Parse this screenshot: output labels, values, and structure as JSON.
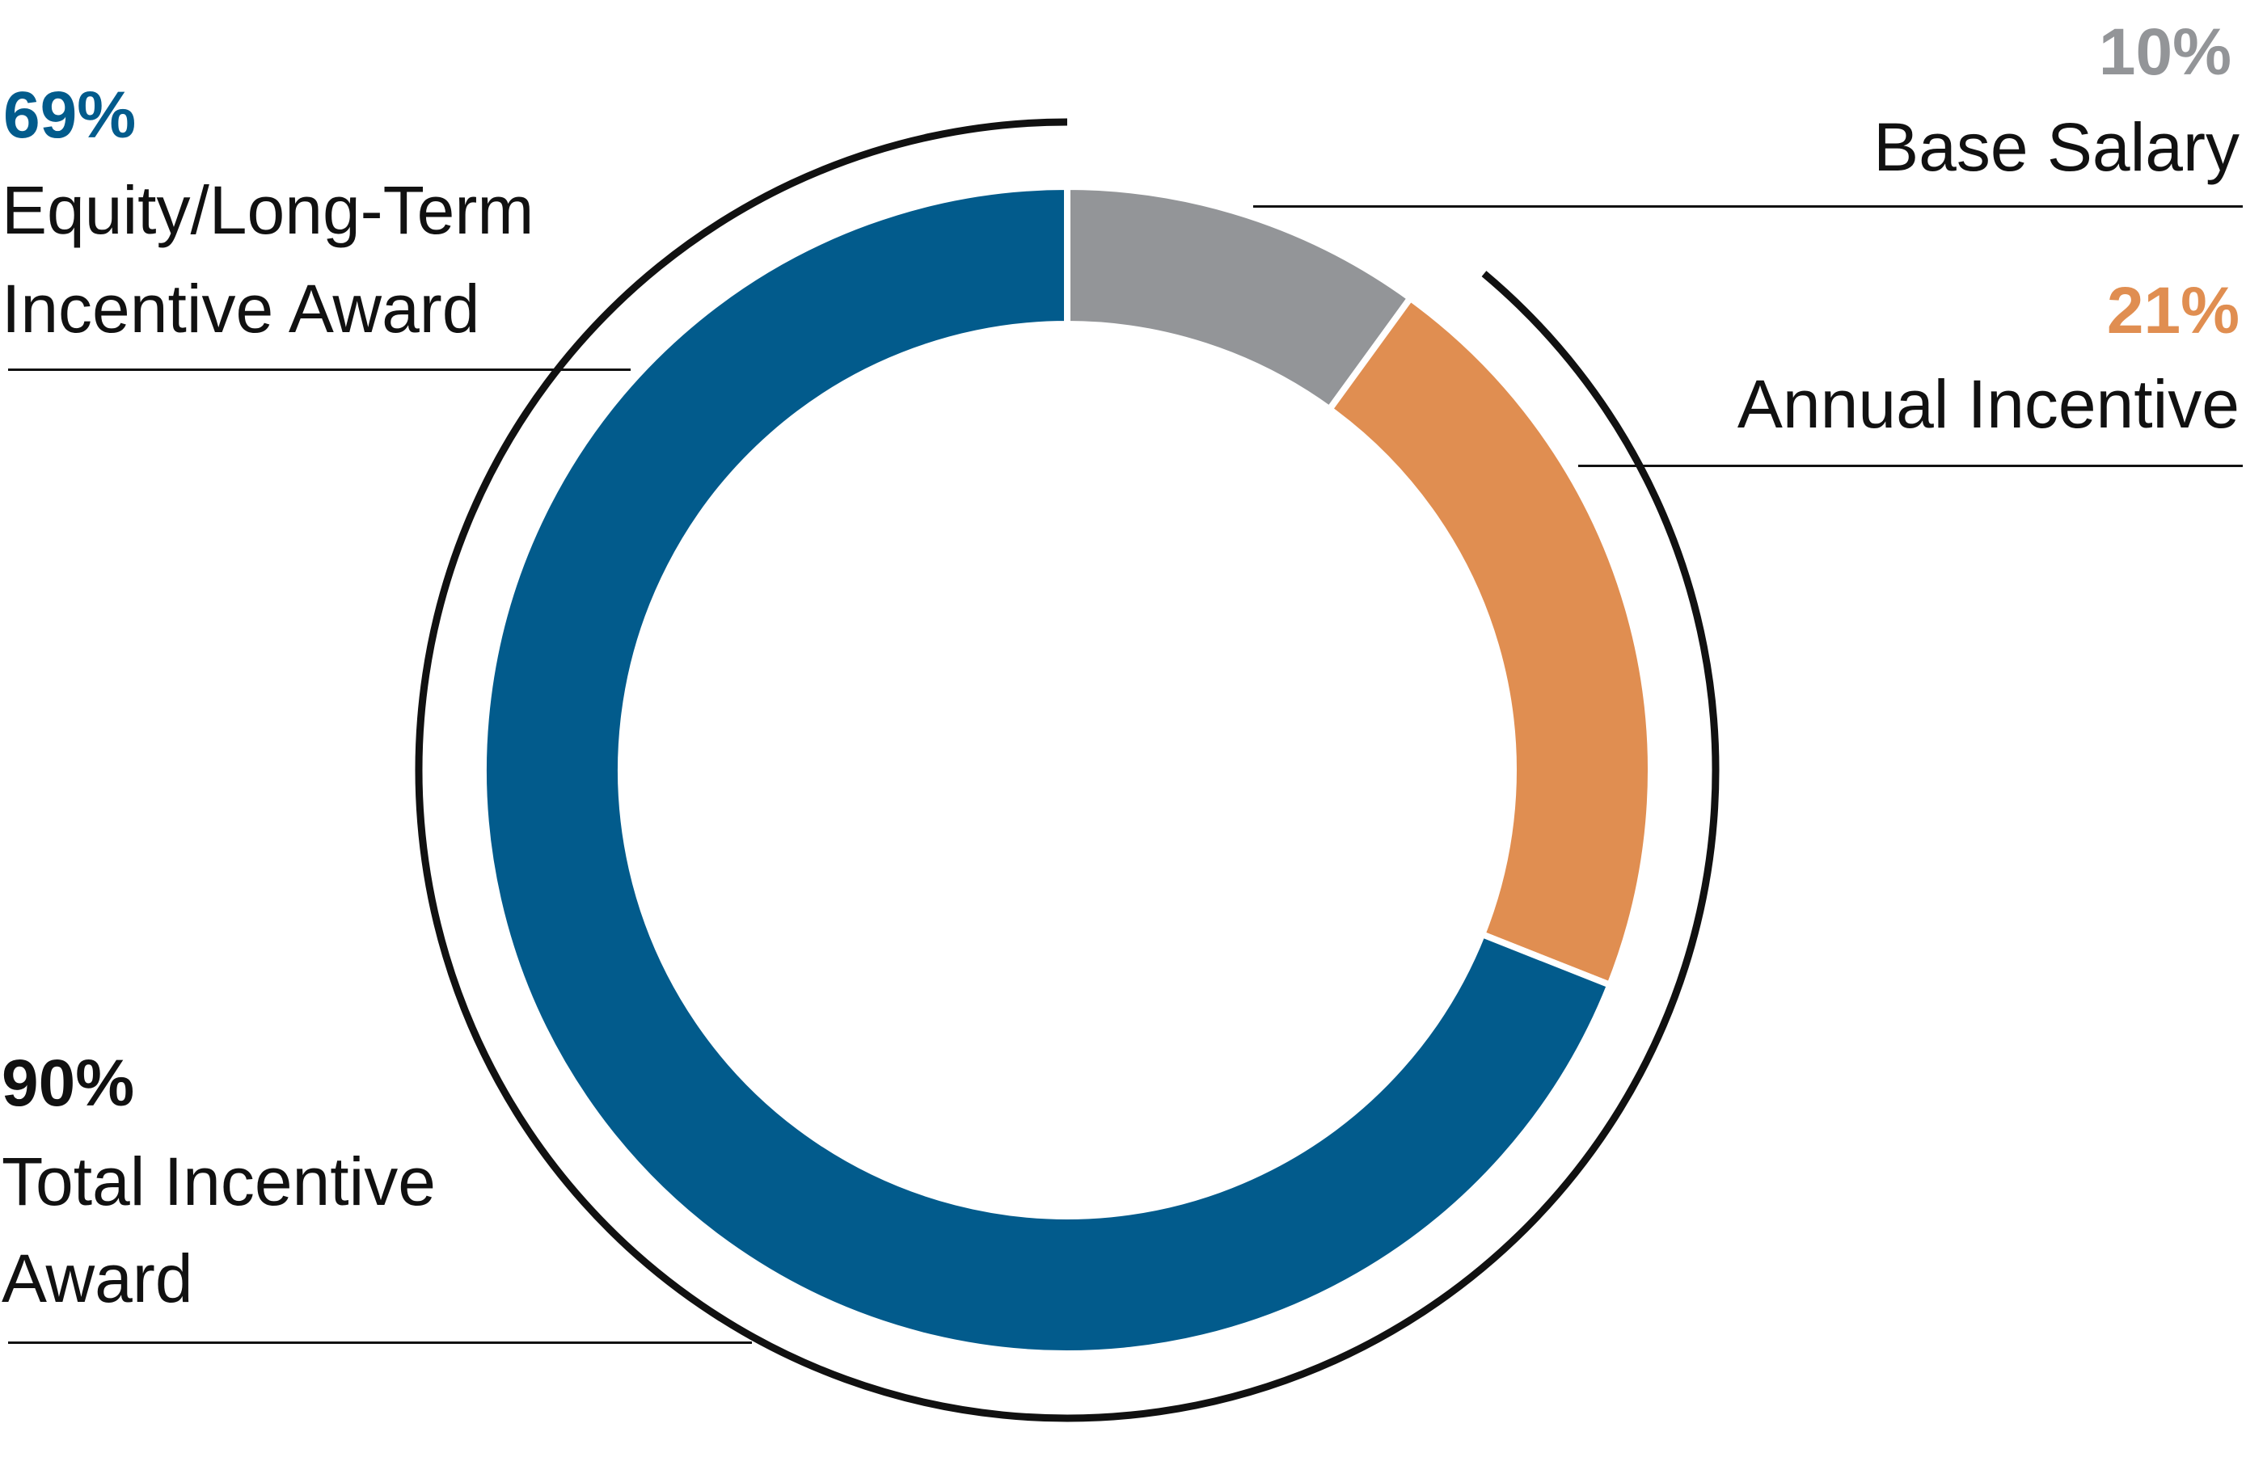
{
  "chart_data": {
    "type": "pie",
    "style": "donut",
    "slices": [
      {
        "name": "Base Salary",
        "value": 10,
        "label": "10%",
        "color": "#939598"
      },
      {
        "name": "Annual Incentive",
        "value": 21,
        "label": "21%",
        "color": "#E08E51"
      },
      {
        "name": "Equity/Long-Term Incentive Award",
        "value": 69,
        "label": "69%",
        "color": "#025B8C"
      }
    ],
    "group": {
      "name": "Total Incentive Award",
      "value": 90,
      "label": "90%",
      "color": "#111111"
    },
    "labels": {
      "base_salary": {
        "pct": "10%",
        "name": "Base Salary",
        "color": "#939598"
      },
      "annual_incentive": {
        "pct": "21%",
        "name": "Annual Incentive",
        "color": "#E08E51"
      },
      "equity": {
        "pct": "69%",
        "name_line1": "Equity/Long-Term",
        "name_line2": "Incentive Award",
        "color": "#025B8C"
      },
      "total_incentive": {
        "pct": "90%",
        "name_line1": "Total Incentive",
        "name_line2": "Award",
        "color": "#111111"
      }
    }
  }
}
